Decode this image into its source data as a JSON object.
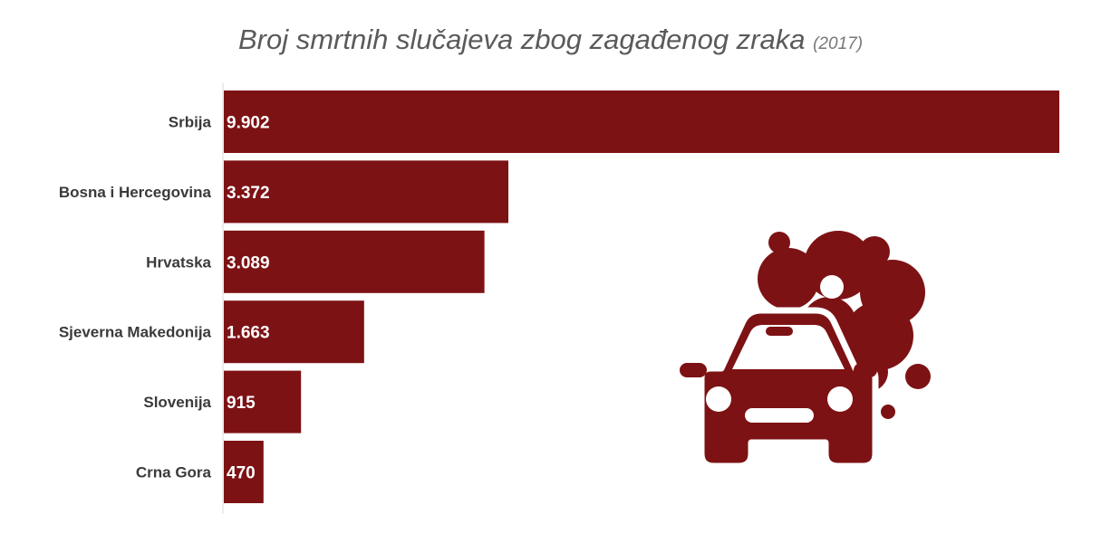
{
  "colors": {
    "bar": "#7d1214",
    "icon": "#7d1214",
    "axis": "#d8d8d8"
  },
  "icon": "car-smog-icon",
  "chart_data": {
    "type": "bar",
    "orientation": "horizontal",
    "title": "Broj smrtnih slučajeva zbog zagađenog zraka",
    "subtitle": "(2017)",
    "categories": [
      "Srbija",
      "Bosna i Hercegovina",
      "Hrvatska",
      "Sjeverna Makedonija",
      "Slovenija",
      "Crna Gora"
    ],
    "values": [
      9902,
      3372,
      3089,
      1663,
      915,
      470
    ],
    "value_labels": [
      "9.902",
      "3.372",
      "3.089",
      "1.663",
      "915",
      "470"
    ],
    "xlim": [
      0,
      9902
    ],
    "grid": false,
    "legend": "none"
  }
}
